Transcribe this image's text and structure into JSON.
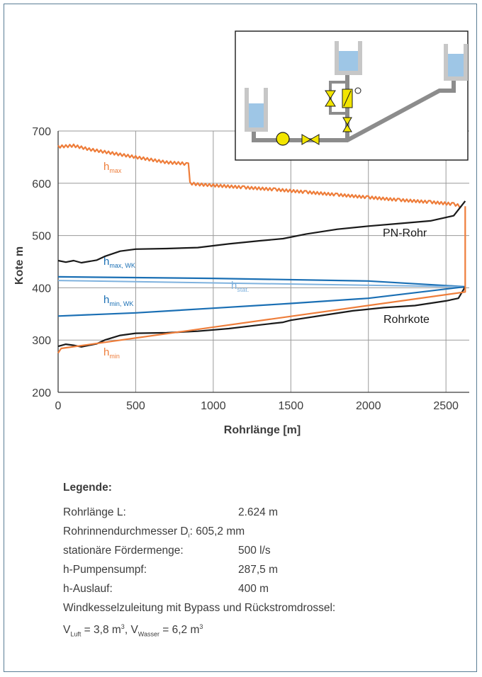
{
  "chart_data": {
    "type": "line",
    "xlabel": "Rohrlänge [m]",
    "ylabel": "Kote m",
    "xlim": [
      0,
      2650
    ],
    "ylim": [
      200,
      700
    ],
    "x_ticks": [
      0,
      500,
      1000,
      1500,
      2000,
      2500
    ],
    "y_ticks": [
      200,
      300,
      400,
      500,
      600,
      700
    ],
    "grid": true,
    "series": [
      {
        "name": "h_max",
        "color": "#ee7d3a",
        "x": [
          0,
          100,
          200,
          300,
          400,
          500,
          600,
          700,
          800,
          840,
          850,
          900,
          1000,
          1200,
          1400,
          1600,
          1800,
          2000,
          2200,
          2400,
          2550,
          2600
        ],
        "y": [
          670,
          672,
          665,
          660,
          655,
          650,
          645,
          640,
          638,
          636,
          600,
          598,
          596,
          592,
          588,
          583,
          578,
          573,
          568,
          564,
          560,
          556
        ]
      },
      {
        "name": "PN-Rohr",
        "color": "#1a1a1a",
        "x": [
          0,
          50,
          100,
          150,
          250,
          300,
          400,
          500,
          700,
          900,
          1100,
          1300,
          1450,
          1600,
          1800,
          2000,
          2200,
          2400,
          2550,
          2624
        ],
        "y": [
          452,
          449,
          452,
          448,
          453,
          460,
          470,
          474,
          475,
          477,
          484,
          490,
          494,
          503,
          512,
          518,
          523,
          528,
          538,
          566
        ]
      },
      {
        "name": "h_max, WK",
        "color": "#1a6fb4",
        "x": [
          0,
          1000,
          2000,
          2624
        ],
        "y": [
          421,
          418,
          413,
          402
        ]
      },
      {
        "name": "h_stat.",
        "color": "#7fb2de",
        "x": [
          0,
          2624
        ],
        "y": [
          414,
          402
        ]
      },
      {
        "name": "h_min, WK",
        "color": "#1a6fb4",
        "x": [
          0,
          500,
          1000,
          1500,
          2000,
          2624
        ],
        "y": [
          346,
          352,
          361,
          370,
          380,
          402
        ]
      },
      {
        "name": "Rohrkote",
        "color": "#1a1a1a",
        "x": [
          0,
          50,
          100,
          150,
          200,
          250,
          300,
          400,
          500,
          700,
          900,
          1100,
          1300,
          1450,
          1500,
          1700,
          1900,
          2100,
          2300,
          2500,
          2580,
          2624
        ],
        "y": [
          288,
          292,
          290,
          287,
          290,
          293,
          300,
          309,
          313,
          314,
          317,
          322,
          329,
          334,
          338,
          347,
          356,
          362,
          366,
          375,
          380,
          402
        ]
      },
      {
        "name": "h_min",
        "color": "#ee7d3a",
        "x": [
          0,
          10,
          20,
          2624,
          2624
        ],
        "y": [
          275,
          280,
          284,
          392,
          556
        ]
      }
    ],
    "annotations": [
      "hmax",
      "PN-Rohr",
      "hmax, WK",
      "hstat.",
      "hmin, WK",
      "Rohrkote",
      "hmin"
    ]
  },
  "labels": {
    "hmax": {
      "base": "h",
      "sub": "max"
    },
    "hmax_wk": {
      "base": "h",
      "sub": "max, WK"
    },
    "hstat": {
      "base": "h",
      "sub": "stat."
    },
    "hmin_wk": {
      "base": "h",
      "sub": "min, WK"
    },
    "hmin": {
      "base": "h",
      "sub": "min"
    },
    "pn_rohr": "PN-Rohr",
    "rohrkote": "Rohrkote"
  },
  "legend": {
    "heading": "Legende:",
    "rows": [
      {
        "label": "Rohrlänge L:",
        "value": "2.624 m"
      },
      {
        "label": "Rohrinnendurchmesser D",
        "label_sub": "i",
        "label_end": ":",
        "value": "605,2 mm"
      },
      {
        "label": "stationäre Fördermenge:",
        "value": "500 l/s"
      },
      {
        "label": "h-Pumpensumpf:",
        "value": "287,5 m"
      },
      {
        "label": "h-Auslauf:",
        "value": "400 m"
      }
    ],
    "note": "Windkesselzuleitung mit Bypass und Rückstromdrossel:",
    "volumes": {
      "v1_base": "V",
      "v1_sub": "Luft",
      "v1_value": " = 3,8 m",
      "v1_sup": "3",
      "sep": ", ",
      "v2_base": "V",
      "v2_sub": "Wasser",
      "v2_value": " = 6,2 m",
      "v2_sup": "3"
    }
  },
  "colors": {
    "orange": "#ee7d3a",
    "blue": "#1a6fb4",
    "lightblue": "#7fb2de",
    "black": "#1a1a1a",
    "valve": "#f2e500"
  }
}
